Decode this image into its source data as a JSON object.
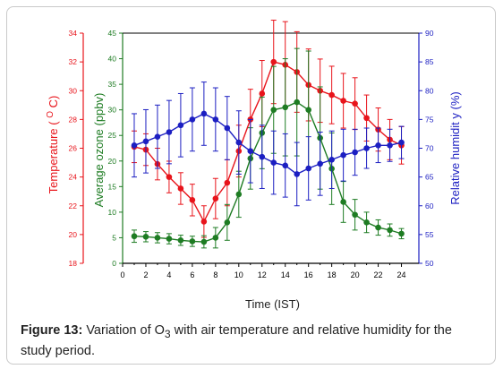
{
  "chart_data": {
    "type": "line",
    "title": "",
    "xlabel": "Time (IST)",
    "x": [
      1,
      2,
      3,
      4,
      5,
      6,
      7,
      8,
      9,
      10,
      11,
      12,
      13,
      14,
      15,
      16,
      17,
      18,
      19,
      20,
      21,
      22,
      23,
      24
    ],
    "xlim": [
      0,
      25.5
    ],
    "xticks": [
      "0",
      "2",
      "4",
      "6",
      "8",
      "10",
      "12",
      "14",
      "16",
      "18",
      "20",
      "22",
      "24"
    ],
    "axes": {
      "temperature": {
        "label": "Temperature ( O C)",
        "label_parts": [
          "Temperature ( ",
          "O",
          " C)"
        ],
        "side": "left-outer",
        "ylim": [
          18,
          34
        ],
        "ticks": [
          "18",
          "20",
          "22",
          "24",
          "26",
          "28",
          "30",
          "32",
          "34"
        ],
        "color": "#e8141b"
      },
      "ozone": {
        "label": "Average ozone (ppbv)",
        "side": "left-inner",
        "ylim": [
          0,
          45
        ],
        "ticks": [
          "0",
          "5",
          "10",
          "15",
          "20",
          "25",
          "30",
          "35",
          "40",
          "45"
        ],
        "color": "#1e7c23"
      },
      "humidity": {
        "label": "Relative humidit y (%)",
        "side": "right",
        "ylim": [
          50,
          90
        ],
        "ticks": [
          "50",
          "55",
          "60",
          "65",
          "70",
          "75",
          "80",
          "85",
          "90"
        ],
        "color": "#1c1fc2"
      }
    },
    "series": [
      {
        "axis": "temperature",
        "color": "#e8141b",
        "values": [
          26.1,
          25.9,
          24.9,
          24.0,
          23.2,
          22.4,
          20.9,
          22.5,
          23.6,
          25.8,
          28.0,
          29.8,
          32.0,
          31.8,
          31.3,
          30.4,
          30.0,
          29.7,
          29.3,
          29.1,
          28.1,
          27.3,
          26.6,
          26.2
        ],
        "err": [
          1.1,
          1.1,
          1.1,
          1.1,
          1.1,
          1.1,
          1.1,
          1.4,
          1.6,
          1.8,
          2.1,
          2.3,
          2.9,
          3.0,
          2.8,
          2.5,
          2.2,
          2.0,
          1.9,
          1.8,
          1.6,
          1.5,
          1.4,
          1.3
        ]
      },
      {
        "axis": "ozone",
        "color": "#1e7c23",
        "values": [
          5.3,
          5.2,
          5.0,
          4.8,
          4.5,
          4.3,
          4.2,
          5.0,
          8.0,
          13.5,
          20.5,
          25.5,
          30.0,
          30.5,
          31.5,
          30.0,
          24.5,
          18.5,
          12.0,
          9.5,
          8.0,
          7.0,
          6.5,
          5.8
        ],
        "err": [
          1.2,
          1.0,
          1.0,
          1.0,
          1.0,
          1.0,
          1.2,
          2.0,
          3.5,
          4.5,
          6.0,
          7.0,
          8.5,
          9.5,
          10.5,
          11.5,
          10.0,
          7.0,
          4.0,
          3.0,
          2.0,
          1.5,
          1.2,
          1.0
        ]
      },
      {
        "axis": "humidity",
        "color": "#1c1fc2",
        "values": [
          70.5,
          71.2,
          72.0,
          72.8,
          74.0,
          75.0,
          76.0,
          75.0,
          73.5,
          71.0,
          69.5,
          68.5,
          67.5,
          67.0,
          65.5,
          66.5,
          67.3,
          68.0,
          68.8,
          69.3,
          70.0,
          70.5,
          70.5,
          71.0
        ],
        "err": [
          5.5,
          5.5,
          5.5,
          5.5,
          5.5,
          5.5,
          5.5,
          5.5,
          5.5,
          5.5,
          5.5,
          5.5,
          5.5,
          5.5,
          5.5,
          5.5,
          5.5,
          5.0,
          4.5,
          4.0,
          3.5,
          3.0,
          2.8,
          2.8
        ]
      }
    ]
  },
  "caption": {
    "label": "Figure 13:",
    "text_before": " Variation of O",
    "subscript": "3",
    "text_after": " with air temperature and relative humidity for the study period."
  }
}
